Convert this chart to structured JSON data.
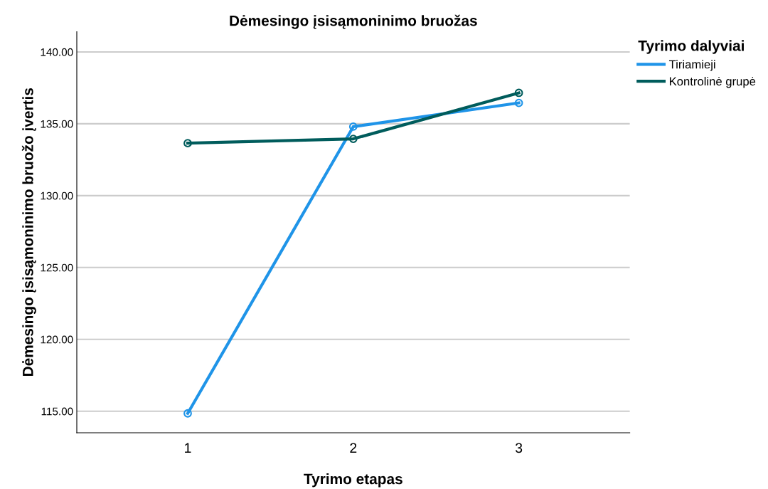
{
  "chart_data": {
    "type": "line",
    "title": "Dėmesingo įsisąmoninimo bruožas",
    "xlabel": "Tyrimo etapas",
    "ylabel": "Dėmesingo įsisąmoninimo bruožo įvertis",
    "legend_title": "Tyrimo dalyviai",
    "x": [
      1,
      2,
      3
    ],
    "series": [
      {
        "name": "Tiriamieji",
        "color": "#1f94e8",
        "values": [
          114.85,
          134.8,
          136.45
        ]
      },
      {
        "name": "Kontrolinė grupė",
        "color": "#005c5c",
        "values": [
          133.65,
          133.95,
          137.15
        ]
      }
    ],
    "xlim": [
      0.33,
      3.67
    ],
    "xticks": [
      1,
      2,
      3
    ],
    "ylim": [
      113.5,
      141.4
    ],
    "yticks": [
      {
        "value": 115,
        "label": "115.00"
      },
      {
        "value": 120,
        "label": "120.00"
      },
      {
        "value": 125,
        "label": "125.00"
      },
      {
        "value": 130,
        "label": "130.00"
      },
      {
        "value": 135,
        "label": "135.00"
      },
      {
        "value": 140,
        "label": "140.00"
      }
    ],
    "grid": "y",
    "legend": "top right",
    "marker": "circle",
    "line_style": "solid"
  }
}
